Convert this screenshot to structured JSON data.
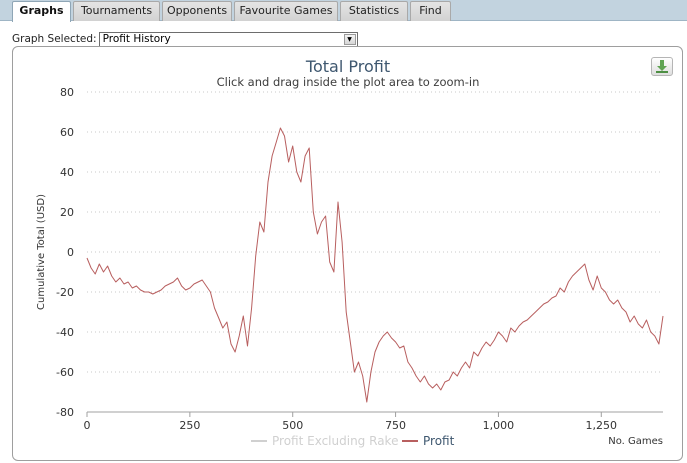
{
  "tabs": [
    {
      "label": "Graphs",
      "active": true
    },
    {
      "label": "Tournaments",
      "active": false
    },
    {
      "label": "Opponents",
      "active": false
    },
    {
      "label": "Favourite Games",
      "active": false
    },
    {
      "label": "Statistics",
      "active": false
    },
    {
      "label": "Find",
      "active": false
    }
  ],
  "graph_selector": {
    "label": "Graph Selected:",
    "value": "Profit History"
  },
  "export_icon": "download-icon",
  "colors": {
    "profit_line": "#b85f5f",
    "excluding_rake_line": "#d0d0d0",
    "title": "#3e576f",
    "gridline": "#c8c8c8"
  },
  "chart_data": {
    "type": "line",
    "title": "Total Profit",
    "subtitle": "Click and drag inside the plot area to zoom-in",
    "xlabel": "No. Games",
    "ylabel": "Cumulative Total (USD)",
    "xlim": [
      0,
      1400
    ],
    "ylim": [
      -80,
      80
    ],
    "x_ticks": [
      0,
      250,
      500,
      750,
      1000,
      1250
    ],
    "x_tick_labels": [
      "0",
      "250",
      "500",
      "750",
      "1,000",
      "1,250"
    ],
    "y_ticks": [
      80,
      60,
      40,
      20,
      0,
      -20,
      -40,
      -60,
      -80
    ],
    "grid": true,
    "legend_position": "bottom",
    "legend": [
      {
        "name": "Profit Excluding Rake",
        "visible": false
      },
      {
        "name": "Profit",
        "visible": true
      }
    ],
    "series": [
      {
        "name": "Profit",
        "x": [
          0,
          10,
          20,
          30,
          40,
          50,
          60,
          70,
          80,
          90,
          100,
          110,
          120,
          130,
          140,
          150,
          160,
          170,
          180,
          190,
          200,
          210,
          220,
          230,
          240,
          250,
          260,
          270,
          280,
          290,
          300,
          310,
          320,
          330,
          340,
          350,
          360,
          370,
          380,
          390,
          400,
          410,
          420,
          430,
          440,
          450,
          460,
          470,
          480,
          490,
          500,
          510,
          520,
          530,
          540,
          550,
          560,
          570,
          580,
          590,
          600,
          610,
          620,
          630,
          640,
          650,
          660,
          670,
          680,
          690,
          700,
          710,
          720,
          730,
          740,
          750,
          760,
          770,
          780,
          790,
          800,
          810,
          820,
          830,
          840,
          850,
          860,
          870,
          880,
          890,
          900,
          910,
          920,
          930,
          940,
          950,
          960,
          970,
          980,
          990,
          1000,
          1010,
          1020,
          1030,
          1040,
          1050,
          1060,
          1070,
          1080,
          1090,
          1100,
          1110,
          1120,
          1130,
          1140,
          1150,
          1160,
          1170,
          1180,
          1190,
          1200,
          1210,
          1220,
          1230,
          1240,
          1250,
          1260,
          1270,
          1280,
          1290,
          1300,
          1310,
          1320,
          1330,
          1340,
          1350,
          1360,
          1370,
          1380,
          1390,
          1400
        ],
        "y": [
          -3,
          -8,
          -11,
          -6,
          -10,
          -7,
          -12,
          -15,
          -13,
          -16,
          -15,
          -18,
          -17,
          -19,
          -20,
          -20,
          -21,
          -20,
          -19,
          -17,
          -16,
          -15,
          -13,
          -17,
          -19,
          -18,
          -16,
          -15,
          -14,
          -17,
          -20,
          -28,
          -33,
          -38,
          -35,
          -46,
          -50,
          -42,
          -32,
          -47,
          -28,
          -2,
          15,
          10,
          35,
          48,
          55,
          62,
          58,
          45,
          53,
          40,
          35,
          48,
          52,
          20,
          9,
          15,
          18,
          -5,
          -10,
          25,
          5,
          -30,
          -45,
          -60,
          -55,
          -62,
          -75,
          -60,
          -50,
          -45,
          -42,
          -40,
          -43,
          -45,
          -48,
          -47,
          -55,
          -58,
          -62,
          -65,
          -62,
          -66,
          -68,
          -66,
          -69,
          -65,
          -64,
          -60,
          -62,
          -58,
          -55,
          -58,
          -50,
          -52,
          -48,
          -45,
          -47,
          -44,
          -40,
          -42,
          -45,
          -38,
          -40,
          -37,
          -35,
          -34,
          -32,
          -30,
          -28,
          -26,
          -25,
          -23,
          -22,
          -18,
          -20,
          -15,
          -12,
          -10,
          -8,
          -6,
          -14,
          -19,
          -12,
          -18,
          -20,
          -24,
          -26,
          -24,
          -28,
          -30,
          -35,
          -32,
          -36,
          -38,
          -34,
          -40,
          -42,
          -46,
          -32
        ]
      }
    ]
  }
}
